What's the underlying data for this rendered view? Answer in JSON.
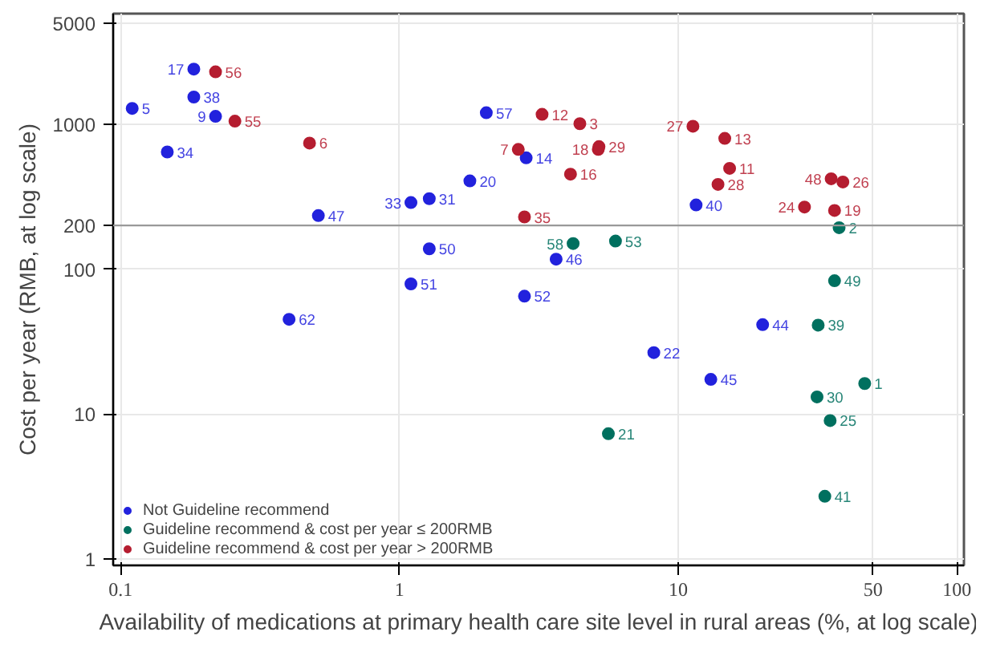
{
  "chart_data": {
    "type": "scatter",
    "xlabel": "Availability of medications at primary health care site level in rural areas (%, at log scale)",
    "ylabel": "Cost per year (RMB, at log scale)",
    "log": "xy",
    "xlim": [
      0.094,
      106
    ],
    "ylim": [
      0.9,
      5800
    ],
    "xticks": [
      0.1,
      1,
      10,
      50,
      100
    ],
    "yticks": [
      1,
      10,
      100,
      200,
      1000,
      5000
    ],
    "grid": true,
    "legend": "bottom left",
    "marker": "circle",
    "ref_lines": [
      {
        "axis": "y",
        "value": 200,
        "color": "#999999"
      }
    ],
    "series": [
      {
        "name": "Not Guideline recommend",
        "color": "#2222dd",
        "x": [
          0.11,
          0.183,
          0.183,
          0.219,
          0.147,
          0.512,
          1.1,
          1.28,
          1.79,
          2.05,
          2.85,
          1.28,
          1.1,
          2.81,
          0.402,
          3.65,
          11.6,
          20.1,
          8.18,
          13.1
        ],
        "values": [
          1285,
          2400,
          1540,
          1133,
          643,
          234,
          288,
          306,
          406,
          1200,
          586,
          138,
          79,
          65,
          45,
          117,
          277,
          41.3,
          26.5,
          17.3
        ]
      },
      {
        "name": "Guideline recommend & cost per year ≤ 200RMB",
        "color": "#00705f",
        "x": [
          4.2,
          5.96,
          37.8,
          36.4,
          31.8,
          46.7,
          31.5,
          35.1,
          5.62,
          33.6
        ],
        "values": [
          150,
          156,
          193,
          83,
          41,
          16.2,
          13.1,
          9.0,
          7.3,
          2.7
        ]
      },
      {
        "name": "Guideline recommend & cost per year > 200RMB",
        "color": "#b51d30",
        "x": [
          0.219,
          0.257,
          0.476,
          2.67,
          2.81,
          3.25,
          4.44,
          5.2,
          5.17,
          4.11,
          11.3,
          14.7,
          15.3,
          13.9,
          28.4,
          35.4,
          39.0,
          36.4
        ],
        "values": [
          2300,
          1050,
          741,
          670,
          229,
          1170,
          1008,
          700,
          670,
          452,
          968,
          798,
          496,
          384,
          268,
          420,
          399,
          254
        ]
      }
    ],
    "annotations": [
      {
        "text": "5",
        "x": 0.11,
        "y": 1285
      },
      {
        "text": "17",
        "x": 0.183,
        "y": 2400
      },
      {
        "text": "38",
        "x": 0.183,
        "y": 1540
      },
      {
        "text": "9",
        "x": 0.219,
        "y": 1133
      },
      {
        "text": "34",
        "x": 0.147,
        "y": 643
      },
      {
        "text": "47",
        "x": 0.512,
        "y": 234
      },
      {
        "text": "33",
        "x": 1.1,
        "y": 288
      },
      {
        "text": "31",
        "x": 1.28,
        "y": 306
      },
      {
        "text": "20",
        "x": 1.79,
        "y": 406
      },
      {
        "text": "57",
        "x": 2.05,
        "y": 1200
      },
      {
        "text": "14",
        "x": 2.85,
        "y": 586
      },
      {
        "text": "50",
        "x": 1.28,
        "y": 138
      },
      {
        "text": "51",
        "x": 1.1,
        "y": 79
      },
      {
        "text": "52",
        "x": 2.81,
        "y": 65
      },
      {
        "text": "62",
        "x": 0.402,
        "y": 45
      },
      {
        "text": "46",
        "x": 3.65,
        "y": 117
      },
      {
        "text": "40",
        "x": 11.6,
        "y": 277
      },
      {
        "text": "44",
        "x": 20.1,
        "y": 41.3
      },
      {
        "text": "22",
        "x": 8.18,
        "y": 26.5
      },
      {
        "text": "45",
        "x": 13.1,
        "y": 17.3
      },
      {
        "text": "58",
        "x": 4.2,
        "y": 150
      },
      {
        "text": "53",
        "x": 5.96,
        "y": 156
      },
      {
        "text": "2",
        "x": 37.8,
        "y": 193
      },
      {
        "text": "49",
        "x": 36.4,
        "y": 83
      },
      {
        "text": "39",
        "x": 31.8,
        "y": 41
      },
      {
        "text": "1",
        "x": 46.7,
        "y": 16.2
      },
      {
        "text": "30",
        "x": 31.5,
        "y": 13.1
      },
      {
        "text": "25",
        "x": 35.1,
        "y": 9.0
      },
      {
        "text": "21",
        "x": 5.62,
        "y": 7.3
      },
      {
        "text": "41",
        "x": 33.6,
        "y": 2.7
      },
      {
        "text": "56",
        "x": 0.219,
        "y": 2300
      },
      {
        "text": "55",
        "x": 0.257,
        "y": 1050
      },
      {
        "text": "6",
        "x": 0.476,
        "y": 741
      },
      {
        "text": "7",
        "x": 2.67,
        "y": 670
      },
      {
        "text": "35",
        "x": 2.81,
        "y": 229
      },
      {
        "text": "12",
        "x": 3.25,
        "y": 1170
      },
      {
        "text": "3",
        "x": 4.44,
        "y": 1008
      },
      {
        "text": "29",
        "x": 5.2,
        "y": 700
      },
      {
        "text": "18",
        "x": 5.17,
        "y": 670
      },
      {
        "text": "16",
        "x": 4.11,
        "y": 452
      },
      {
        "text": "27",
        "x": 11.3,
        "y": 968
      },
      {
        "text": "13",
        "x": 14.7,
        "y": 798
      },
      {
        "text": "11",
        "x": 15.3,
        "y": 496
      },
      {
        "text": "28",
        "x": 13.9,
        "y": 384
      },
      {
        "text": "24",
        "x": 28.4,
        "y": 268
      },
      {
        "text": "48",
        "x": 35.4,
        "y": 420
      },
      {
        "text": "26",
        "x": 39.0,
        "y": 399
      },
      {
        "text": "19",
        "x": 36.4,
        "y": 254
      }
    ]
  }
}
